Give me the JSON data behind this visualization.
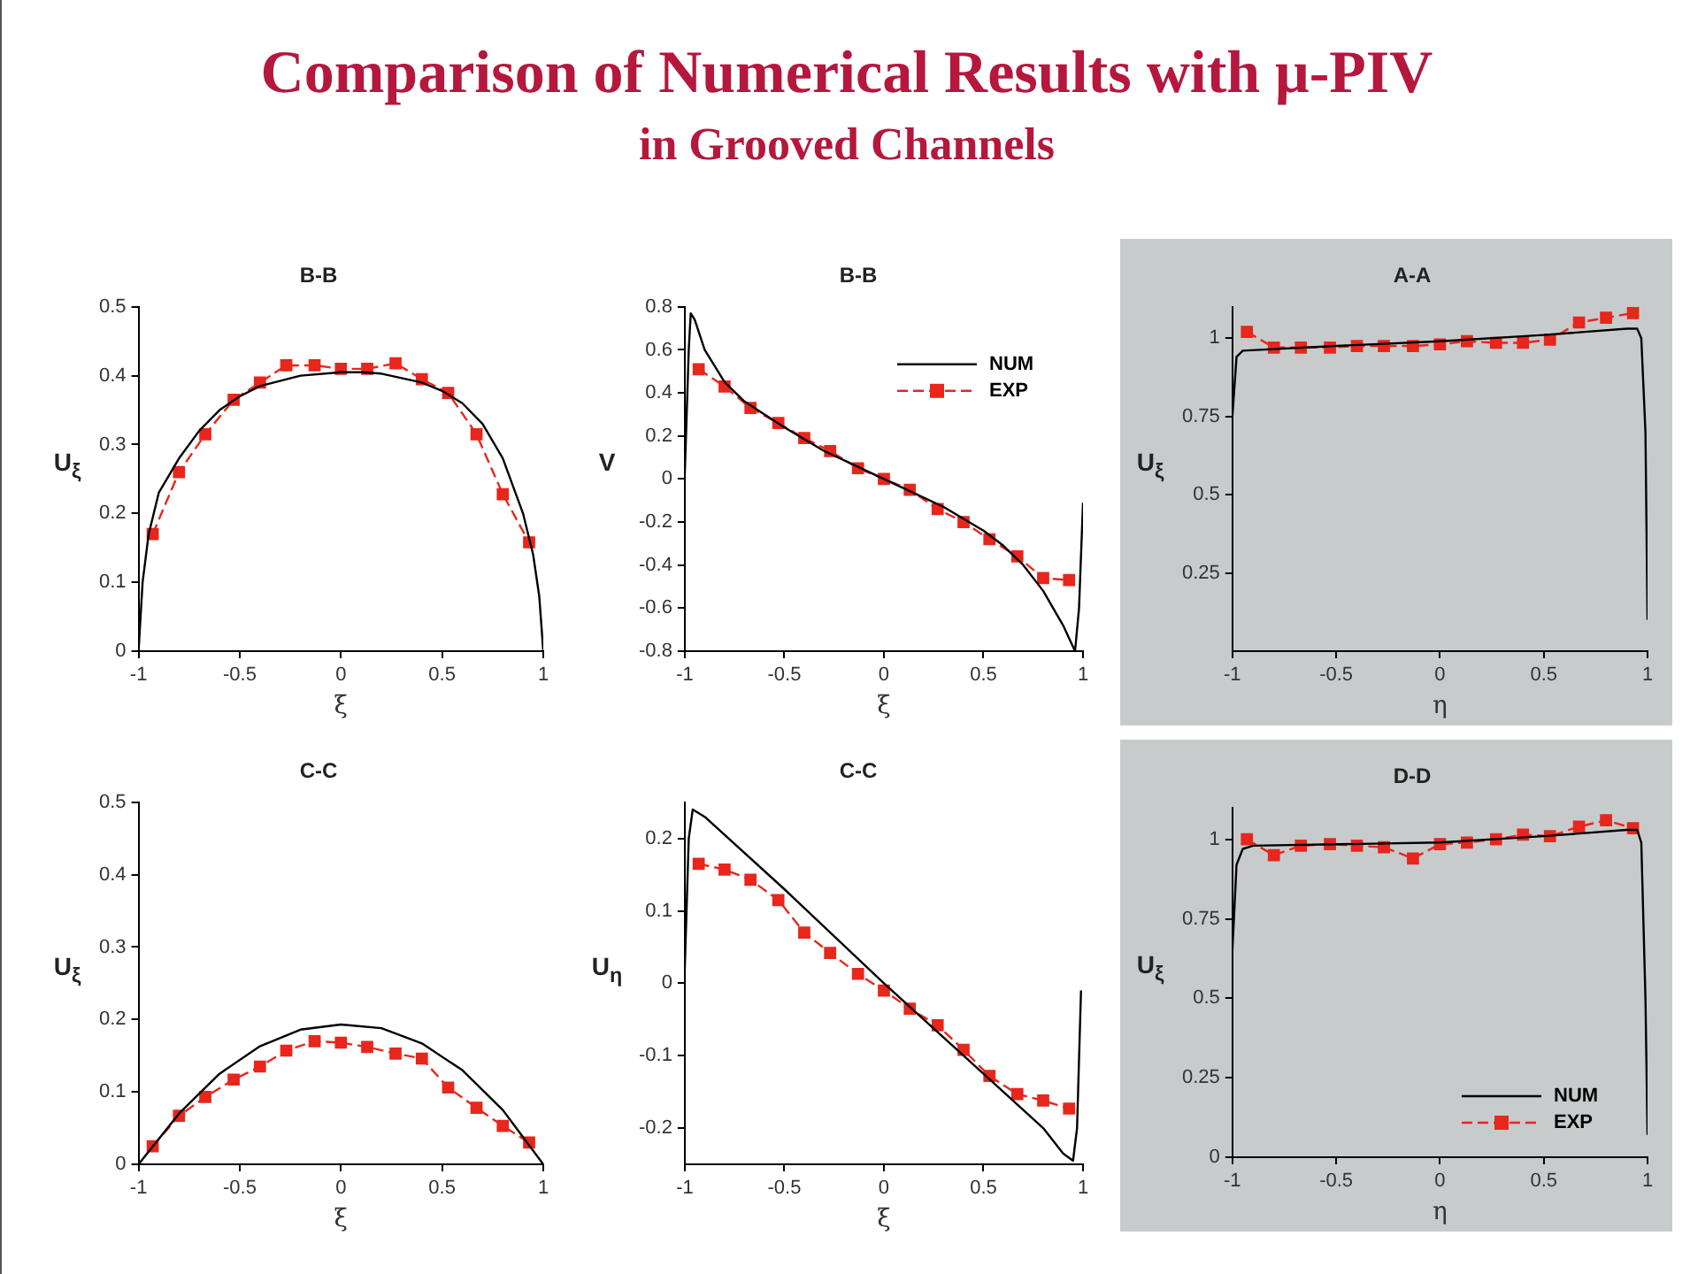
{
  "chart_data": [
    {
      "type": "line",
      "title": "B-B",
      "xlabel": "ξ",
      "ylabel": "U$_{ξ}$",
      "annotations": [
        "Comparison of Numerical Results with μ-PIV",
        "in Grooved Channels"
      ],
      "xlim": [
        -1,
        1
      ],
      "ylim": [
        0,
        0.5
      ],
      "xticks": [
        -1,
        -0.5,
        0,
        0.5,
        1
      ],
      "yticks": [
        0,
        0.1,
        0.2,
        0.3,
        0.4,
        0.5
      ],
      "grid": false,
      "series": [
        {
          "color": "#000000",
          "line_style": "solid",
          "marker": "none",
          "x": [
            -1,
            -0.98,
            -0.95,
            -0.9,
            -0.8,
            -0.7,
            -0.6,
            -0.5,
            -0.4,
            -0.2,
            0,
            0.1,
            0.2,
            0.4,
            0.5,
            0.6,
            0.7,
            0.8,
            0.9,
            0.95,
            0.98,
            1
          ],
          "values": [
            0,
            0.1,
            0.17,
            0.23,
            0.28,
            0.32,
            0.35,
            0.37,
            0.385,
            0.4,
            0.405,
            0.405,
            0.403,
            0.39,
            0.378,
            0.36,
            0.33,
            0.28,
            0.2,
            0.14,
            0.08,
            0
          ]
        },
        {
          "color": "#e8261c",
          "line_style": "dashed",
          "marker": "square",
          "x": [
            -0.93,
            -0.8,
            -0.67,
            -0.53,
            -0.4,
            -0.27,
            -0.13,
            0,
            0.13,
            0.27,
            0.4,
            0.53,
            0.67,
            0.8,
            0.93
          ],
          "values": [
            0.17,
            0.26,
            0.315,
            0.365,
            0.39,
            0.415,
            0.415,
            0.41,
            0.41,
            0.418,
            0.395,
            0.375,
            0.315,
            0.228,
            0.158
          ]
        }
      ]
    },
    {
      "type": "line",
      "title": "B-B",
      "xlabel": "ξ",
      "ylabel": "V",
      "xlim": [
        -1,
        1
      ],
      "ylim": [
        -0.8,
        0.8
      ],
      "xticks": [
        -1,
        -0.5,
        0,
        0.5,
        1
      ],
      "yticks": [
        -0.8,
        -0.6,
        -0.4,
        -0.2,
        0,
        0.2,
        0.4,
        0.6,
        0.8
      ],
      "grid": false,
      "legend": "top right",
      "series": [
        {
          "name": "NUM",
          "color": "#000000",
          "line_style": "solid",
          "marker": "none",
          "x": [
            -1,
            -0.98,
            -0.97,
            -0.95,
            -0.9,
            -0.8,
            -0.7,
            -0.5,
            -0.3,
            0,
            0.3,
            0.5,
            0.6,
            0.7,
            0.8,
            0.9,
            0.96,
            0.98,
            1
          ],
          "values": [
            0.02,
            0.6,
            0.77,
            0.74,
            0.6,
            0.45,
            0.36,
            0.24,
            0.13,
            0,
            -0.13,
            -0.24,
            -0.31,
            -0.4,
            -0.52,
            -0.68,
            -0.8,
            -0.6,
            -0.11
          ]
        },
        {
          "name": "EXP",
          "color": "#e8261c",
          "line_style": "dashed",
          "marker": "square",
          "x": [
            -0.93,
            -0.8,
            -0.67,
            -0.53,
            -0.4,
            -0.27,
            -0.13,
            0,
            0.13,
            0.27,
            0.4,
            0.53,
            0.67,
            0.8,
            0.93
          ],
          "values": [
            0.51,
            0.43,
            0.33,
            0.26,
            0.19,
            0.13,
            0.05,
            0,
            -0.05,
            -0.14,
            -0.2,
            -0.28,
            -0.36,
            -0.46,
            -0.47
          ]
        }
      ]
    },
    {
      "type": "line",
      "title": "A-A",
      "xlabel": "η",
      "ylabel": "U$_{ξ}$",
      "xlim": [
        -1,
        1
      ],
      "ylim": [
        0,
        1.1
      ],
      "xticks": [
        -1,
        -0.5,
        0,
        0.5,
        1
      ],
      "yticks": [
        0.25,
        0.5,
        0.75,
        1
      ],
      "grid": false,
      "series": [
        {
          "color": "#000000",
          "line_style": "solid",
          "marker": "none",
          "x": [
            -1,
            -0.98,
            -0.95,
            -0.5,
            0,
            0.5,
            0.9,
            0.95,
            0.97,
            0.99,
            1
          ],
          "values": [
            0.75,
            0.94,
            0.96,
            0.975,
            0.99,
            1.01,
            1.03,
            1.03,
            1,
            0.7,
            0.1
          ]
        },
        {
          "color": "#e8261c",
          "line_style": "dashed",
          "marker": "square",
          "x": [
            -0.93,
            -0.8,
            -0.67,
            -0.53,
            -0.4,
            -0.27,
            -0.13,
            0,
            0.13,
            0.27,
            0.4,
            0.53,
            0.67,
            0.8,
            0.93
          ],
          "values": [
            1.02,
            0.97,
            0.97,
            0.97,
            0.975,
            0.975,
            0.975,
            0.98,
            0.99,
            0.985,
            0.985,
            0.995,
            1.05,
            1.065,
            1.08
          ]
        }
      ]
    },
    {
      "type": "line",
      "title": "C-C",
      "xlabel": "ξ",
      "ylabel": "U$_{ξ}$",
      "xlim": [
        -1,
        1
      ],
      "ylim": [
        0,
        0.5
      ],
      "xticks": [
        -1,
        -0.5,
        0,
        0.5,
        1
      ],
      "yticks": [
        0,
        0.1,
        0.2,
        0.3,
        0.4,
        0.5
      ],
      "grid": false,
      "series": [
        {
          "color": "#000000",
          "line_style": "solid",
          "marker": "none",
          "x": [
            -1,
            -0.8,
            -0.6,
            -0.4,
            -0.2,
            0,
            0.2,
            0.4,
            0.6,
            0.8,
            1
          ],
          "values": [
            0,
            0.07,
            0.125,
            0.163,
            0.186,
            0.193,
            0.188,
            0.167,
            0.13,
            0.075,
            0
          ]
        },
        {
          "color": "#e8261c",
          "line_style": "dashed",
          "marker": "square",
          "x": [
            -0.93,
            -0.8,
            -0.67,
            -0.53,
            -0.4,
            -0.27,
            -0.13,
            0,
            0.13,
            0.27,
            0.4,
            0.53,
            0.67,
            0.8,
            0.93
          ],
          "values": [
            0.025,
            0.067,
            0.093,
            0.117,
            0.135,
            0.157,
            0.17,
            0.168,
            0.162,
            0.153,
            0.146,
            0.106,
            0.078,
            0.053,
            0.03
          ]
        }
      ]
    },
    {
      "type": "line",
      "title": "C-C",
      "xlabel": "ξ",
      "ylabel": "U$_{η}$",
      "xlim": [
        -1,
        1
      ],
      "ylim": [
        -0.25,
        0.25
      ],
      "xticks": [
        -1,
        -0.5,
        0,
        0.5,
        1
      ],
      "yticks": [
        -0.2,
        -0.1,
        0,
        0.1,
        0.2
      ],
      "grid": false,
      "series": [
        {
          "color": "#000000",
          "line_style": "solid",
          "marker": "none",
          "x": [
            -1,
            -0.98,
            -0.96,
            -0.9,
            -0.5,
            0,
            0.5,
            0.8,
            0.9,
            0.95,
            0.97,
            0.99
          ],
          "values": [
            0.02,
            0.2,
            0.24,
            0.23,
            0.13,
            0,
            -0.125,
            -0.2,
            -0.235,
            -0.245,
            -0.2,
            -0.01
          ]
        },
        {
          "color": "#e8261c",
          "line_style": "dashed",
          "marker": "square",
          "x": [
            -0.93,
            -0.8,
            -0.67,
            -0.53,
            -0.4,
            -0.27,
            -0.13,
            0,
            0.13,
            0.27,
            0.4,
            0.53,
            0.67,
            0.8,
            0.93
          ],
          "values": [
            0.165,
            0.157,
            0.143,
            0.115,
            0.07,
            0.042,
            0.013,
            -0.01,
            -0.035,
            -0.058,
            -0.092,
            -0.128,
            -0.153,
            -0.162,
            -0.173
          ]
        }
      ]
    },
    {
      "type": "line",
      "title": "D-D",
      "xlabel": "η",
      "ylabel": "U$_{ξ}$",
      "xlim": [
        -1,
        1
      ],
      "ylim": [
        0,
        1.1
      ],
      "xticks": [
        -1,
        -0.5,
        0,
        0.5,
        1
      ],
      "yticks": [
        0,
        0.25,
        0.5,
        0.75,
        1
      ],
      "grid": false,
      "legend": "bottom right",
      "series": [
        {
          "name": "NUM",
          "color": "#000000",
          "line_style": "solid",
          "marker": "none",
          "x": [
            -1,
            -0.98,
            -0.95,
            -0.9,
            0,
            0.5,
            0.9,
            0.95,
            0.97,
            0.99,
            1
          ],
          "values": [
            0.65,
            0.92,
            0.97,
            0.98,
            0.99,
            1.01,
            1.03,
            1.03,
            0.99,
            0.5,
            0.07
          ]
        },
        {
          "name": "EXP",
          "color": "#e8261c",
          "line_style": "dashed",
          "marker": "square",
          "x": [
            -0.93,
            -0.8,
            -0.67,
            -0.53,
            -0.4,
            -0.27,
            -0.13,
            0,
            0.13,
            0.27,
            0.4,
            0.53,
            0.67,
            0.8,
            0.93
          ],
          "values": [
            1,
            0.95,
            0.98,
            0.985,
            0.98,
            0.975,
            0.94,
            0.985,
            0.99,
            1,
            1.015,
            1.01,
            1.04,
            1.06,
            1.035
          ]
        }
      ]
    }
  ]
}
